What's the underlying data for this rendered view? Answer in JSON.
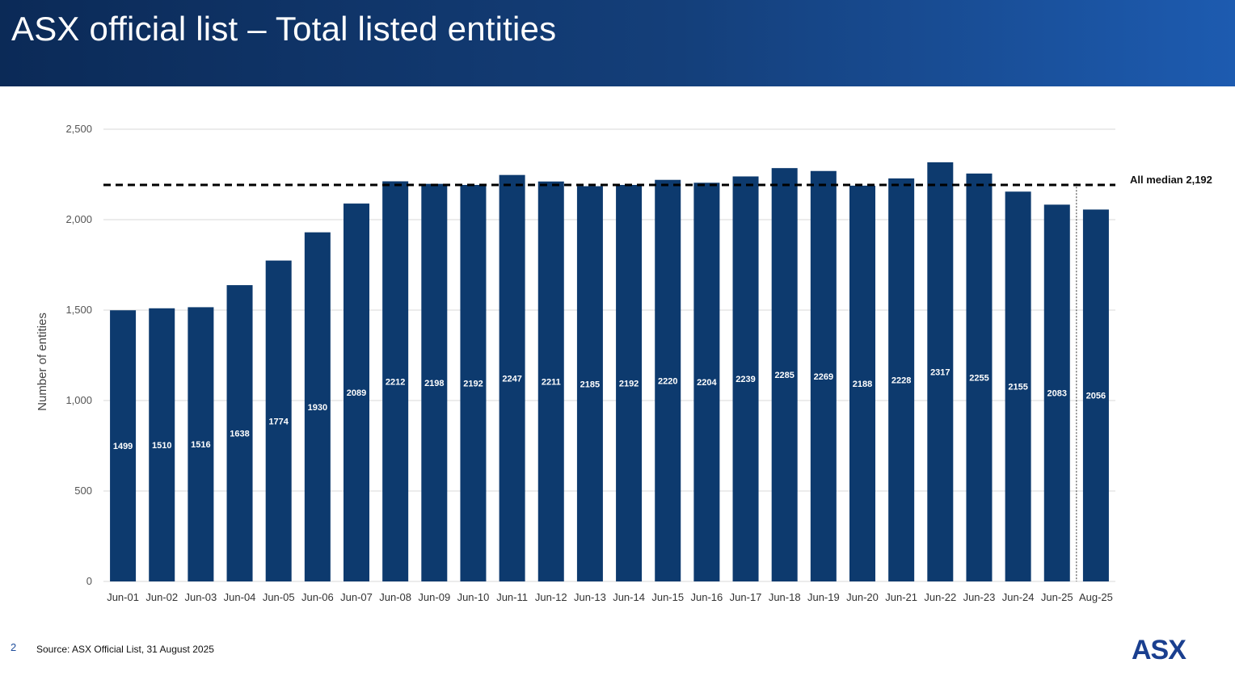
{
  "header": {
    "title": "ASX official list – Total listed entities"
  },
  "footer": {
    "page_number": "2",
    "source": "Source: ASX Official List, 31 August 2025",
    "logo_text": "ASX"
  },
  "colors": {
    "bar": "#0d3a6e",
    "grid": "#d9d9d9",
    "median": "#000000",
    "header_start": "#0b2a57",
    "header_end": "#1d5bb0"
  },
  "chart_data": {
    "type": "bar",
    "title": "",
    "xlabel": "",
    "ylabel": "Number of entities",
    "ylim": [
      0,
      2500
    ],
    "yticks": [
      0,
      500,
      1000,
      1500,
      2000,
      2500
    ],
    "ytick_labels": [
      "0",
      "500",
      "1,000",
      "1,500",
      "2,000",
      "2,500"
    ],
    "categories": [
      "Jun-01",
      "Jun-02",
      "Jun-03",
      "Jun-04",
      "Jun-05",
      "Jun-06",
      "Jun-07",
      "Jun-08",
      "Jun-09",
      "Jun-10",
      "Jun-11",
      "Jun-12",
      "Jun-13",
      "Jun-14",
      "Jun-15",
      "Jun-16",
      "Jun-17",
      "Jun-18",
      "Jun-19",
      "Jun-20",
      "Jun-21",
      "Jun-22",
      "Jun-23",
      "Jun-24",
      "Jun-25",
      "Aug-25"
    ],
    "values": [
      1499,
      1510,
      1516,
      1638,
      1774,
      1930,
      2089,
      2212,
      2198,
      2192,
      2247,
      2211,
      2185,
      2192,
      2220,
      2204,
      2239,
      2285,
      2269,
      2188,
      2228,
      2317,
      2255,
      2155,
      2083,
      2056
    ],
    "data_labels": [
      "1499",
      "1510",
      "1516",
      "1638",
      "1774",
      "1930",
      "2089",
      "2212",
      "2198",
      "2192",
      "2247",
      "2211",
      "2185",
      "2192",
      "2220",
      "2204",
      "2239",
      "2285",
      "2269",
      "2188",
      "2228",
      "2317",
      "2255",
      "2155",
      "2083",
      "2056"
    ],
    "reference_line": {
      "value": 2192,
      "label": "All median 2,192",
      "style": "dashed"
    },
    "separator_before_category": "Aug-25",
    "grid": true
  }
}
